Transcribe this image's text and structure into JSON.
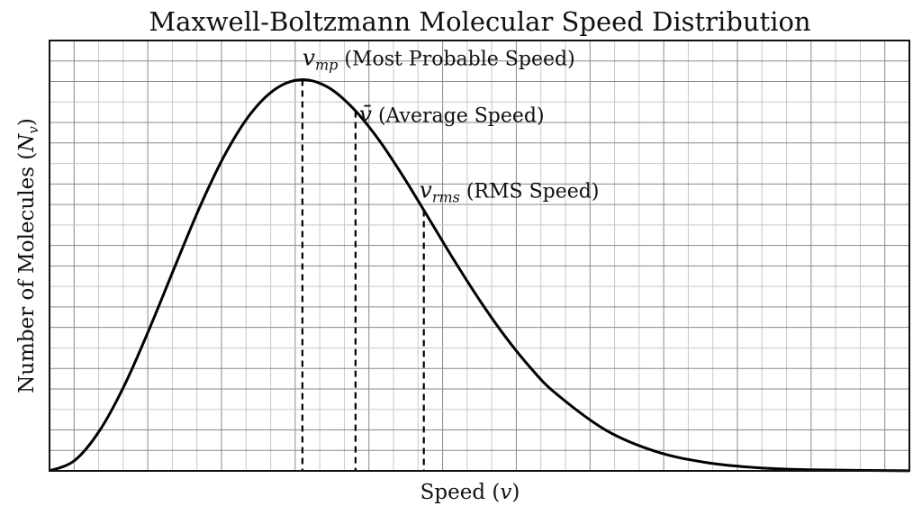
{
  "chart_data": {
    "type": "line",
    "title": "Maxwell-Boltzmann Molecular Speed Distribution",
    "xlabel": "Speed (v)",
    "xlabel_parts": {
      "text": "Speed (",
      "var": "v",
      "close": ")"
    },
    "ylabel": "Number of Molecules (Nv)",
    "ylabel_parts": {
      "text": "Number of Molecules (",
      "var": "N",
      "sub": "v",
      "close": ")"
    },
    "xlim": [
      0,
      3.4
    ],
    "ylim": [
      0,
      1.1
    ],
    "grid": true,
    "tick_labels": false,
    "x": [
      0,
      0.1,
      0.2,
      0.3,
      0.4,
      0.5,
      0.6,
      0.7,
      0.8,
      0.9,
      1.0,
      1.1,
      1.2,
      1.3,
      1.4,
      1.5,
      1.6,
      1.7,
      1.8,
      1.9,
      2.0,
      2.2,
      2.4,
      2.6,
      2.8,
      3.0,
      3.4
    ],
    "y": [
      0,
      0.027,
      0.105,
      0.224,
      0.371,
      0.529,
      0.683,
      0.816,
      0.917,
      0.979,
      1.0,
      0.981,
      0.927,
      0.848,
      0.751,
      0.645,
      0.538,
      0.437,
      0.345,
      0.265,
      0.199,
      0.104,
      0.049,
      0.021,
      0.008,
      0.003,
      0.0002
    ],
    "markers": [
      {
        "id": "mp",
        "symbol": "v",
        "sub": "mp",
        "bar": false,
        "label": " (Most Probable Speed)",
        "x": 1.0
      },
      {
        "id": "avg",
        "symbol": "v̄",
        "sub": "",
        "bar": true,
        "label": " (Average Speed)",
        "x": 1.21
      },
      {
        "id": "rms",
        "symbol": "v",
        "sub": "rms",
        "bar": false,
        "label": " (RMS Speed)",
        "x": 1.48
      }
    ],
    "colors": {
      "curve": "#000000",
      "grid_major": "#8a8a8a",
      "grid_minor": "#c8c8c8",
      "marker": "#000000"
    }
  }
}
